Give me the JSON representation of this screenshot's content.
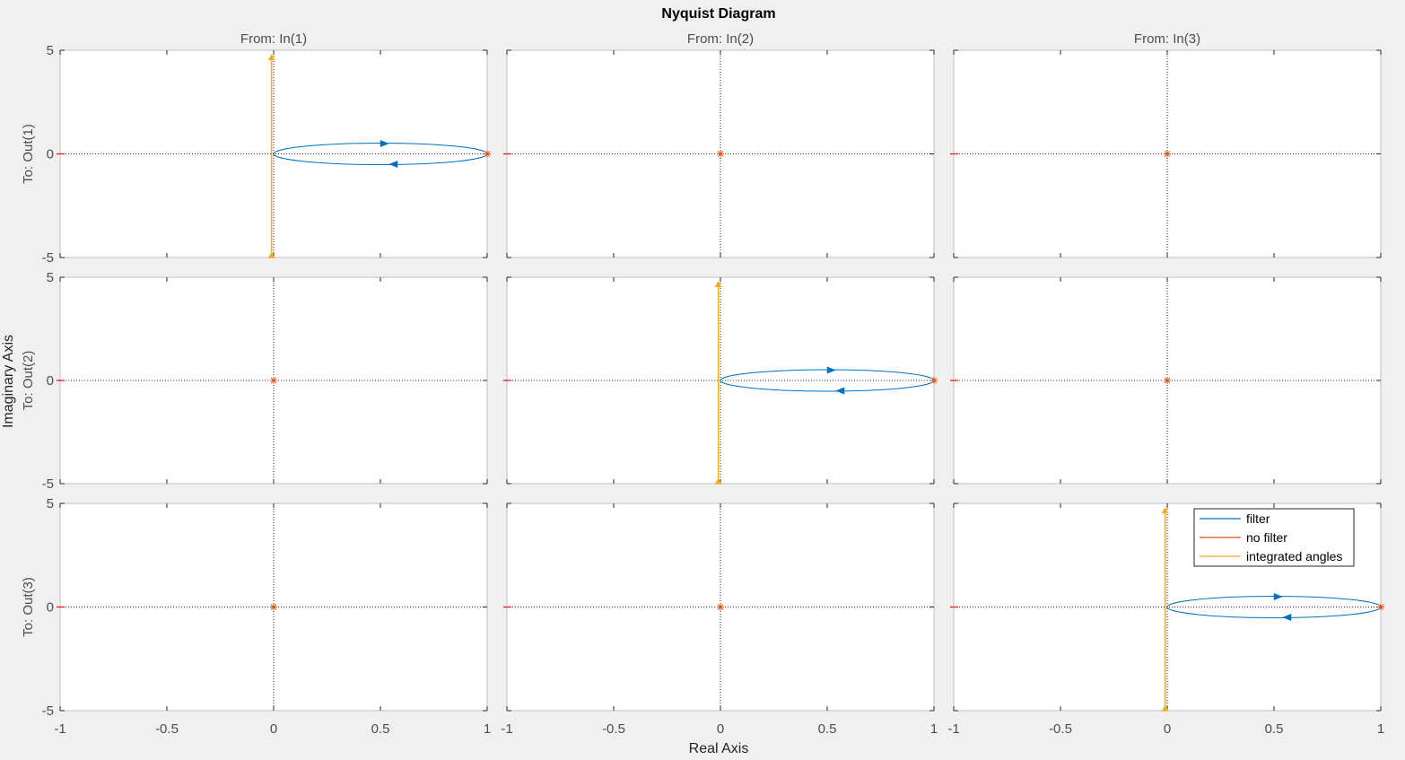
{
  "chart_data": {
    "type": "line",
    "title": "Nyquist Diagram",
    "xlabel": "Real Axis",
    "ylabel": "Imaginary Axis",
    "column_titles": [
      "From: In(1)",
      "From: In(2)",
      "From: In(3)"
    ],
    "row_titles": [
      "To: Out(1)",
      "To: Out(2)",
      "To: Out(3)"
    ],
    "xlim": [
      -1,
      1
    ],
    "ylim": [
      -5,
      5
    ],
    "xticks": [
      -1,
      -0.5,
      0,
      0.5,
      1
    ],
    "xtick_labels": [
      "-1",
      "-0.5",
      "0",
      "0.5",
      "1"
    ],
    "yticks": [
      -5,
      0,
      5
    ],
    "ytick_labels": [
      "-5",
      "0",
      "5"
    ],
    "grid": false,
    "legend": {
      "placement": "top-right",
      "panel": [
        2,
        2
      ]
    },
    "colors": {
      "filter": "#0072bd",
      "no_filter": "#d95319",
      "integrated_angles": "#edb120",
      "axes_line": "#262626"
    },
    "series": [
      {
        "name": "filter",
        "color": "#0072bd",
        "description_free": true,
        "diagonal": {
          "center": [
            0.5,
            0
          ],
          "radius_x": 0.5,
          "radius_y": 0.52
        }
      },
      {
        "name": "no filter",
        "color": "#d95319",
        "points": {
          "diagonal": [
            1,
            0
          ],
          "off_diagonal": [
            0,
            0
          ],
          "left_edge": [
            -1,
            0
          ]
        }
      },
      {
        "name": "integrated angles",
        "color": "#edb120",
        "diagonal": {
          "x": -0.01,
          "y": [
            -4.9,
            4.65
          ]
        }
      }
    ]
  }
}
